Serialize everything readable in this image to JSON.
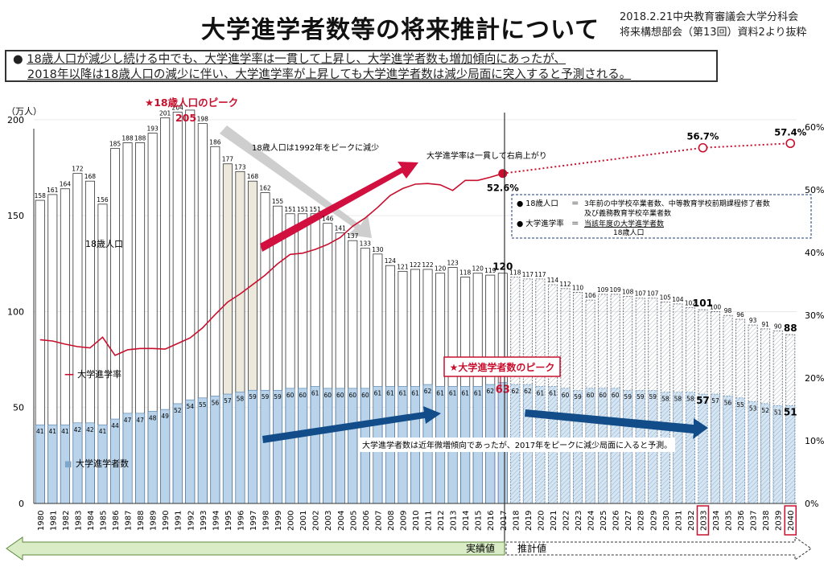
{
  "header": {
    "title": "大学進学者数等の将来推計について",
    "source_line1": "2018.2.21中央教育審議会大学分科会",
    "source_line2": "将来構想部会（第13回）資料2より抜粋"
  },
  "summary": {
    "bullet": "●",
    "line1": "18歳人口が減少し続ける中でも、大学進学率は一貫して上昇し、大学進学者数も増加傾向にあったが、",
    "line2": "2018年以降は18歳人口の減少に伴い、大学進学率が上昇しても大学進学者数は減少局面に突入すると予測される。"
  },
  "chart_data": {
    "type": "bar",
    "y_left_unit": "（万人）",
    "y_left_ticks": [
      "0",
      "50",
      "100",
      "150",
      "200"
    ],
    "y_left_lim": [
      0,
      210
    ],
    "y_right_ticks": [
      "0%",
      "10%",
      "20%",
      "30%",
      "40%",
      "50%",
      "60%"
    ],
    "y_right_lim": [
      0,
      60
    ],
    "x": [
      "1980",
      "1981",
      "1982",
      "1983",
      "1984",
      "1985",
      "1986",
      "1987",
      "1988",
      "1989",
      "1990",
      "1991",
      "1992",
      "1993",
      "1994",
      "1995",
      "1996",
      "1997",
      "1998",
      "1999",
      "2000",
      "2001",
      "2002",
      "2003",
      "2004",
      "2005",
      "2006",
      "2007",
      "2008",
      "2009",
      "2010",
      "2011",
      "2012",
      "2013",
      "2014",
      "2015",
      "2016",
      "2017",
      "2018",
      "2019",
      "2020",
      "2021",
      "2022",
      "2023",
      "2024",
      "2025",
      "2026",
      "2027",
      "2028",
      "2029",
      "2030",
      "2031",
      "2032",
      "2033",
      "2034",
      "2035",
      "2036",
      "2037",
      "2038",
      "2039",
      "2040"
    ],
    "population_18": [
      158,
      161,
      164,
      172,
      168,
      156,
      185,
      188,
      188,
      193,
      201,
      204,
      205,
      198,
      186,
      177,
      173,
      168,
      162,
      155,
      151,
      151,
      151,
      146,
      141,
      137,
      133,
      130,
      124,
      121,
      122,
      122,
      120,
      123,
      118,
      120,
      119,
      120,
      118,
      117,
      117,
      114,
      112,
      110,
      106,
      109,
      109,
      108,
      107,
      107,
      105,
      104,
      102,
      101,
      100,
      98,
      96,
      93,
      91,
      90,
      88
    ],
    "population_18_labels": [
      "158",
      "161",
      "164",
      "172",
      "168",
      "156",
      "185",
      "188",
      "188",
      "193",
      "201",
      "204",
      "205",
      "198",
      "186",
      "177",
      "173",
      "168",
      "162",
      "155",
      "151",
      "151",
      "151",
      "146",
      "141",
      "137",
      "133",
      "130",
      "124",
      "121",
      "122",
      "122",
      "120",
      "123",
      "118",
      "120",
      "119",
      "120",
      "118",
      "117",
      "117",
      "114",
      "112",
      "110",
      "106",
      "109",
      "109",
      "108",
      "107",
      "107",
      "105",
      "104",
      "102",
      "101",
      "100",
      "98",
      "96",
      "93",
      "91",
      "90",
      "88"
    ],
    "entrants": [
      41,
      41,
      41,
      42,
      42,
      41,
      44,
      47,
      47,
      48,
      49,
      52,
      54,
      55,
      56,
      57,
      58,
      59,
      59,
      59,
      60,
      60,
      61,
      60,
      60,
      60,
      60,
      61,
      61,
      61,
      61,
      62,
      61,
      61,
      61,
      61,
      62,
      63,
      62,
      62,
      61,
      61,
      60,
      59,
      60,
      60,
      60,
      59,
      59,
      59,
      58,
      58,
      58,
      57,
      57,
      56,
      55,
      53,
      52,
      51,
      51
    ],
    "entrants_labels": [
      "41",
      "41",
      "41",
      "42",
      "42",
      "41",
      "44",
      "47",
      "47",
      "48",
      "49",
      "52",
      "54",
      "55",
      "56",
      "57",
      "58",
      "59",
      "59",
      "59",
      "60",
      "60",
      "61",
      "60",
      "60",
      "60",
      "60",
      "61",
      "61",
      "61",
      "61",
      "62",
      "61",
      "61",
      "61",
      "61",
      "62",
      "63",
      "62",
      "62",
      "61",
      "61",
      "60",
      "59",
      "60",
      "60",
      "60",
      "59",
      "59",
      "59",
      "58",
      "58",
      "58",
      "57",
      "57",
      "56",
      "55",
      "53",
      "52",
      "51",
      "51"
    ],
    "rate_actual": [
      26.1,
      25.9,
      25.4,
      25.0,
      24.8,
      26.5,
      23.6,
      24.5,
      24.7,
      24.7,
      24.6,
      25.5,
      26.4,
      28.0,
      30.1,
      32.1,
      33.4,
      34.9,
      36.4,
      38.2,
      39.7,
      39.9,
      40.5,
      41.3,
      42.4,
      44.2,
      45.5,
      47.2,
      49.1,
      50.2,
      50.9,
      51.0,
      50.8,
      49.9,
      51.5,
      51.5,
      52.0,
      52.6
    ],
    "rate_forecast_points": [
      {
        "year": "2017",
        "value": 52.6
      },
      {
        "year": "2033",
        "value": 56.7
      },
      {
        "year": "2040",
        "value": 57.4
      }
    ],
    "rate_label_2017": "52.6%",
    "rate_label_2033": "56.7%",
    "rate_label_2040": "57.4%",
    "series_names": {
      "population": "18歳人口",
      "rate": "大学進学率",
      "entrants": "大学進学者数"
    },
    "legend_rate_mark": "—",
    "legend_entrants_mark": "■"
  },
  "annotations": {
    "pop_peak": "★18歳人口のピーク",
    "pop_peak_value": "205",
    "pop_decline": "18歳人口は1992年をピークに減少",
    "rate_rise": "大学進学率は一貫して右肩上がり",
    "entrants_peak": "★大学進学者数のピーク",
    "entrants_peak_value": "63",
    "entrants_note": "大学進学者数は近年微増傾向であったが、2017年をピークに減少局面に入ると予測。",
    "last_actual_pop": "120",
    "pop_2033": "101",
    "pop_2040": "88",
    "ent_2033": "57",
    "ent_2040": "51"
  },
  "definition_box": {
    "row1_term": "● 18歳人口",
    "row1_eq": "＝",
    "row1_def_1": "3年前の中学校卒業者数、中等教育学校前期課程修了者数",
    "row1_def_2": "及び義務教育学校卒業者数",
    "row2_term": "● 大学進学率",
    "row2_eq": "＝",
    "row2_num": "当該年度の大学進学者数",
    "row2_den": "18歳人口"
  },
  "footer": {
    "actual_label": "実績値",
    "forecast_label": "推計値"
  },
  "colors": {
    "entrants_fill": "#b8d3ea",
    "rate_line": "#c8102e",
    "arrow_red": "#d2103f",
    "arrow_blue": "#124d8a",
    "arrow_gray": "#c9c9c9",
    "footer_green": "#d9ecc5",
    "footer_green_border": "#5b8a3c"
  }
}
